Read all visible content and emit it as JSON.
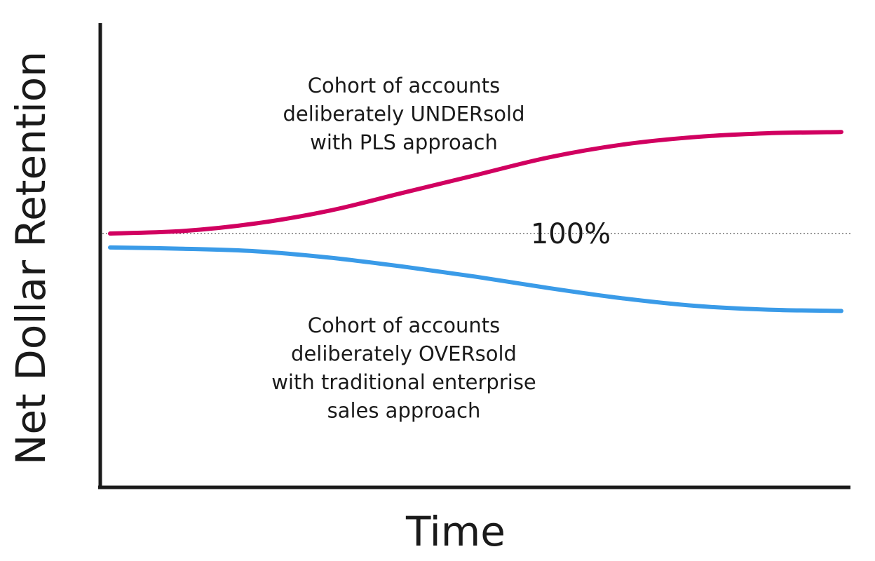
{
  "chart_data": {
    "type": "line",
    "x_label": "Time",
    "y_label": "Net Dollar Retention",
    "x": [
      0,
      1,
      2,
      3,
      4,
      5,
      6,
      7,
      8,
      9,
      10
    ],
    "xlim": [
      0,
      10
    ],
    "ylim": [
      0,
      180
    ],
    "series": [
      {
        "color": "#d10060",
        "values": [
          100,
          101,
          104,
          109,
          116,
          123,
          130,
          135,
          138,
          139.5,
          140
        ]
      },
      {
        "color": "#3a9be8",
        "values": [
          94.5,
          94,
          93,
          90.5,
          87,
          83,
          78.5,
          74.5,
          71.5,
          70,
          69.5
        ]
      }
    ],
    "reference_line": {
      "value": 100,
      "label": "100%"
    },
    "annotations": [
      {
        "lines": [
          "Cohort of accounts",
          "deliberately UNDERsold",
          "with PLS approach"
        ]
      },
      {
        "lines": [
          "Cohort of accounts",
          "deliberately OVERsold",
          "with traditional enterprise",
          "sales approach"
        ]
      }
    ]
  }
}
